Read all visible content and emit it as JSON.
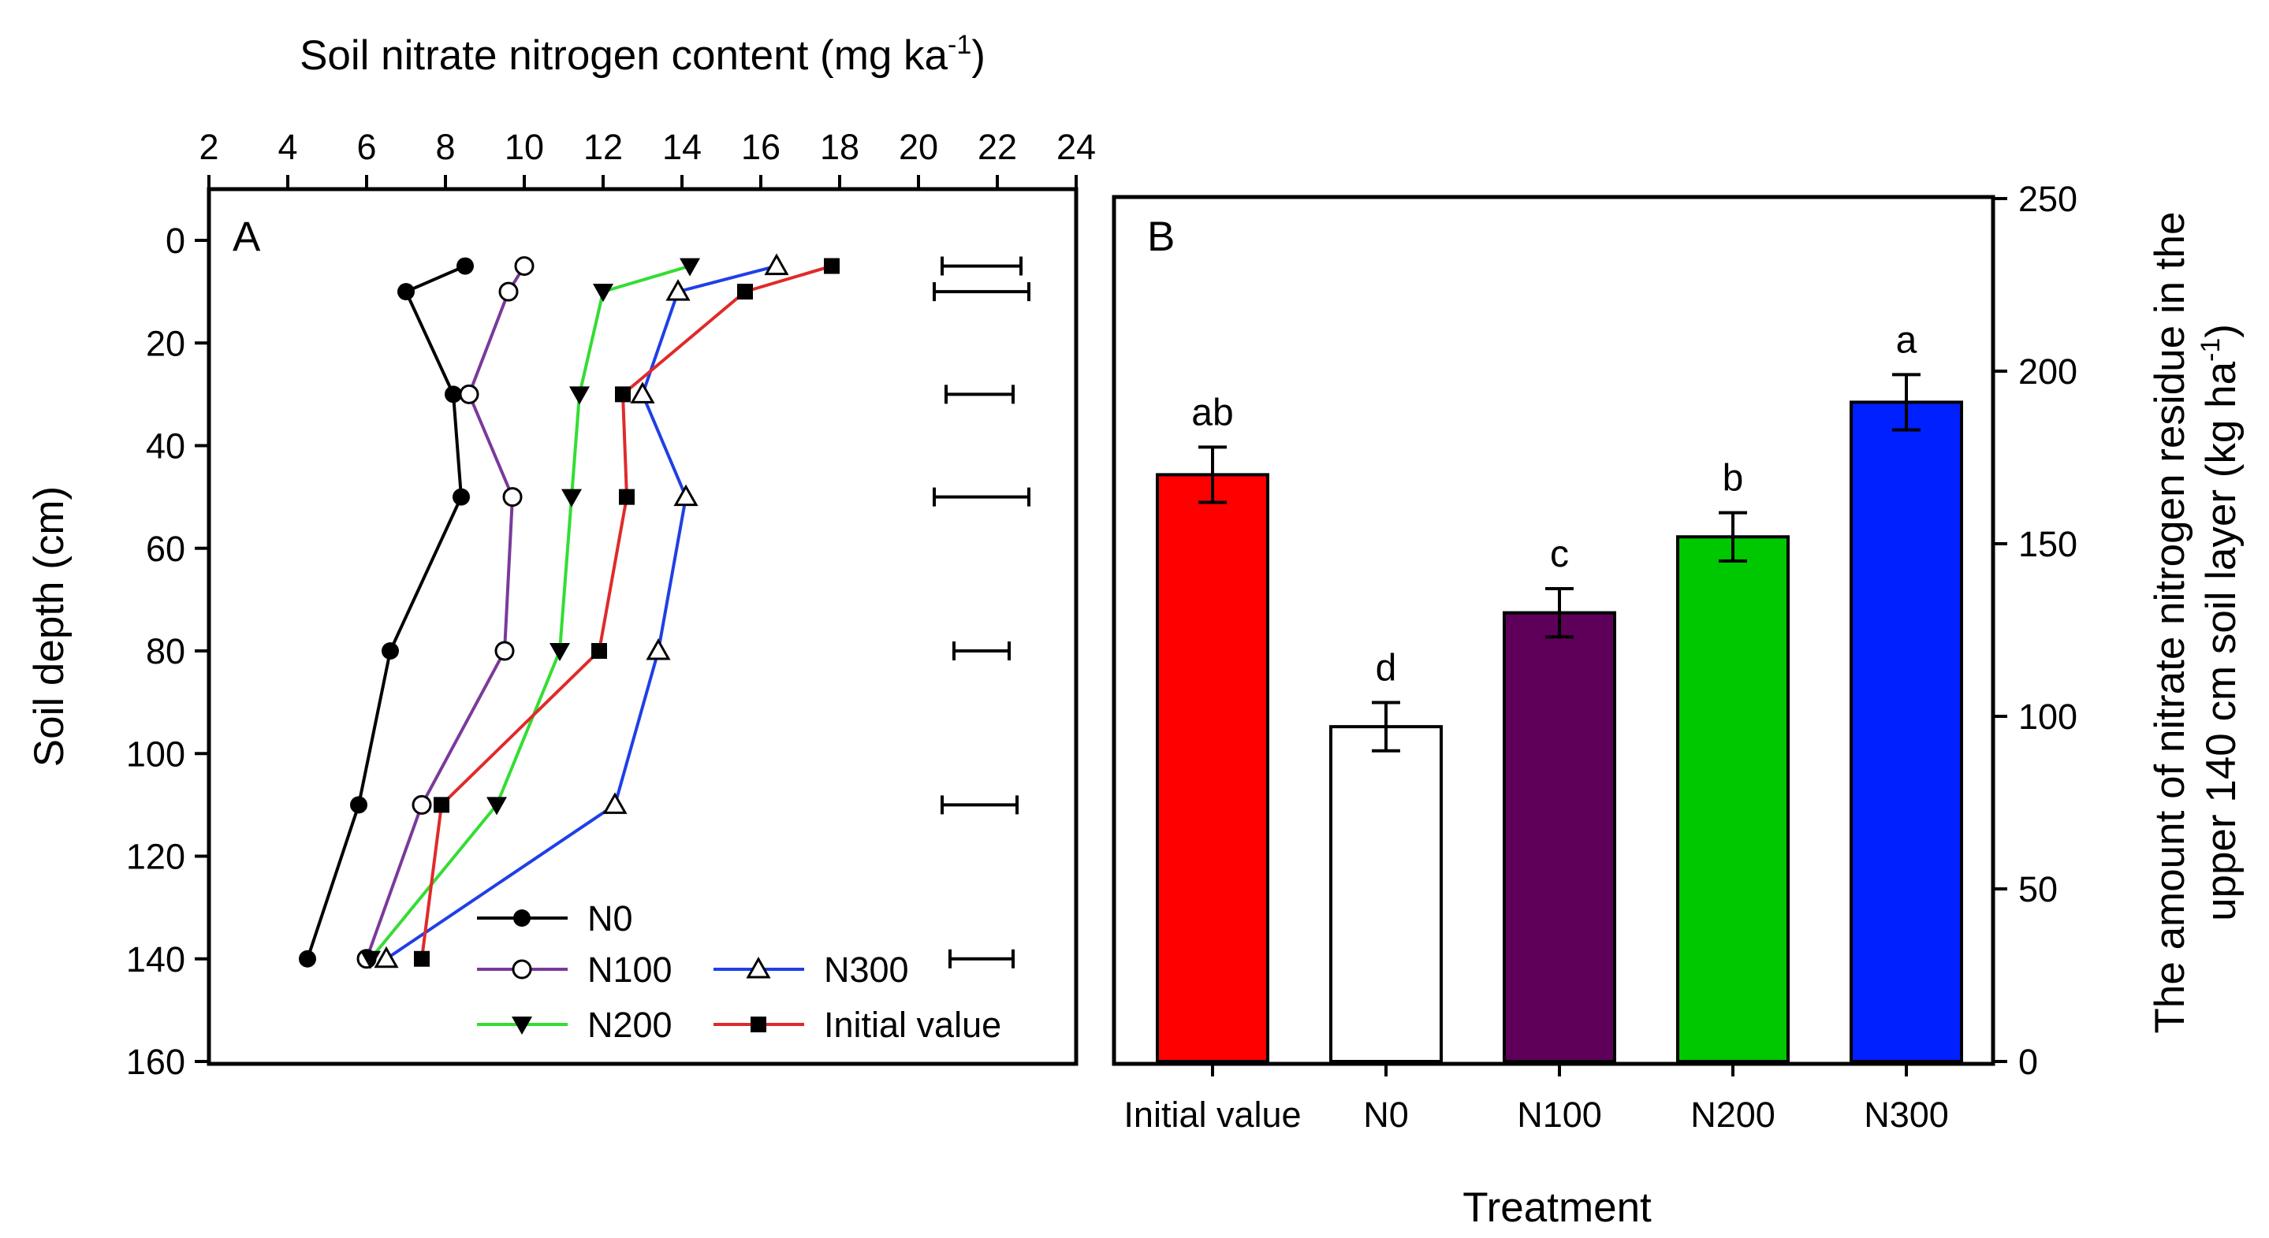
{
  "chart_data": [
    {
      "panel": "A",
      "type": "line",
      "xlabel": "Soil nitrate nitrogen content (mg ka",
      "xlabel_sup": "-1",
      "xlabel_close": ")",
      "ylabel": "Soil depth (cm)",
      "xlim": [
        2,
        24
      ],
      "ylim": [
        0,
        160
      ],
      "y_inverted": true,
      "x_axis_position": "top",
      "xticks": [
        2,
        4,
        6,
        8,
        10,
        12,
        14,
        16,
        18,
        20,
        22,
        24
      ],
      "yticks": [
        0,
        20,
        40,
        60,
        80,
        100,
        120,
        140,
        160
      ],
      "series": [
        {
          "name": "N0",
          "marker": "filled-circle",
          "color": "#000000",
          "points": [
            [
              8.5,
              5
            ],
            [
              7.0,
              10
            ],
            [
              8.2,
              30
            ],
            [
              8.4,
              50
            ],
            [
              6.6,
              80
            ],
            [
              5.8,
              110
            ],
            [
              4.5,
              140
            ]
          ]
        },
        {
          "name": "N100",
          "marker": "open-circle",
          "color": "#7a3a9a",
          "points": [
            [
              10.0,
              5
            ],
            [
              9.6,
              10
            ],
            [
              8.6,
              30
            ],
            [
              9.7,
              50
            ],
            [
              9.5,
              80
            ],
            [
              7.4,
              110
            ],
            [
              6.0,
              140
            ]
          ]
        },
        {
          "name": "N200",
          "marker": "filled-triangle-down",
          "color": "#33dd33",
          "points": [
            [
              14.2,
              5
            ],
            [
              12.0,
              10
            ],
            [
              11.4,
              30
            ],
            [
              11.2,
              50
            ],
            [
              10.9,
              80
            ],
            [
              9.3,
              110
            ],
            [
              6.1,
              140
            ]
          ]
        },
        {
          "name": "N300",
          "marker": "open-triangle-up",
          "color": "#1f3fe6",
          "points": [
            [
              16.4,
              5
            ],
            [
              13.9,
              10
            ],
            [
              13.0,
              30
            ],
            [
              14.1,
              50
            ],
            [
              13.4,
              80
            ],
            [
              12.3,
              110
            ],
            [
              6.5,
              140
            ]
          ]
        },
        {
          "name": "Initial value",
          "marker": "filled-square",
          "color": "#e02a2a",
          "points": [
            [
              17.8,
              5
            ],
            [
              15.6,
              10
            ],
            [
              12.5,
              30
            ],
            [
              12.6,
              50
            ],
            [
              11.9,
              80
            ],
            [
              7.9,
              110
            ],
            [
              7.4,
              140
            ]
          ]
        }
      ],
      "error_bars": [
        {
          "depth": 5,
          "from": 20.6,
          "to": 22.6
        },
        {
          "depth": 10,
          "from": 20.4,
          "to": 22.8
        },
        {
          "depth": 30,
          "from": 20.7,
          "to": 22.4
        },
        {
          "depth": 50,
          "from": 20.4,
          "to": 22.8
        },
        {
          "depth": 80,
          "from": 20.9,
          "to": 22.3
        },
        {
          "depth": 110,
          "from": 20.6,
          "to": 22.5
        },
        {
          "depth": 140,
          "from": 20.8,
          "to": 22.4
        }
      ],
      "legend": [
        {
          "label": "N0",
          "series": "N0"
        },
        {
          "label": "N100",
          "series": "N100"
        },
        {
          "label": "N200",
          "series": "N200"
        },
        {
          "label": "N300",
          "series": "N300"
        },
        {
          "label": "Initial value",
          "series": "Initial value"
        }
      ],
      "legend_placement": "bottom-right",
      "grid": false
    },
    {
      "panel": "B",
      "type": "bar",
      "xlabel": "Treatment",
      "ylabel_line1": "The amount of nitrate nitrogen residue in the",
      "ylabel_line2": "upper 140 cm soil layer (kg ha",
      "ylabel_sup": "-1",
      "ylabel_close": ")",
      "y_axis_position": "right",
      "ylim": [
        0,
        250
      ],
      "yticks": [
        0,
        50,
        100,
        150,
        200,
        250
      ],
      "categories": [
        "Initial value",
        "N0",
        "N100",
        "N200",
        "N300"
      ],
      "values": [
        170,
        97,
        130,
        152,
        191
      ],
      "errors": [
        8,
        7,
        7,
        7,
        8
      ],
      "letters": [
        "ab",
        "d",
        "c",
        "b",
        "a"
      ],
      "colors": [
        "#ff0000",
        "#ffffff",
        "#5e0059",
        "#00c800",
        "#0020ff"
      ],
      "grid": false
    }
  ]
}
